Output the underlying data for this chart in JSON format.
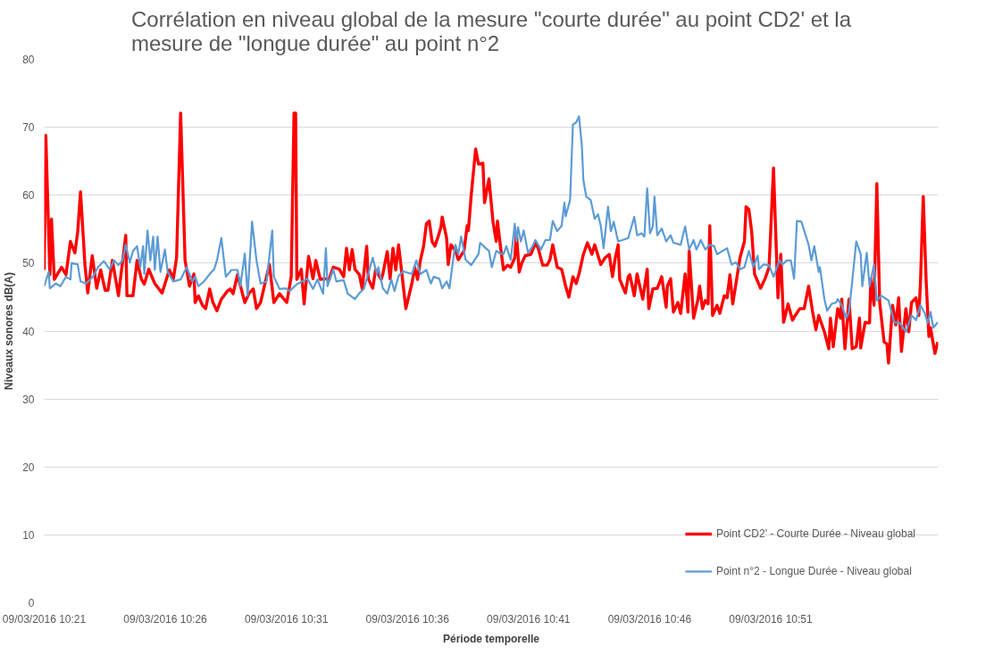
{
  "chart_data": {
    "type": "line",
    "title": "Corrélation en niveau global de la mesure \"courte durée\" au point CD2' et la mesure de \"longue durée\" au point n°2",
    "xlabel": "Période temporelle",
    "ylabel": "Niveaux sonores dB(A)",
    "xlim": [
      "2016-03-09T10:21:00",
      "2016-03-09T10:57:55"
    ],
    "ylim": [
      0,
      80
    ],
    "xticks": [
      {
        "value": "2016-03-09T10:21",
        "label": "09/03/2016 10:21"
      },
      {
        "value": "2016-03-09T10:26",
        "label": "09/03/2016 10:26"
      },
      {
        "value": "2016-03-09T10:31",
        "label": "09/03/2016 10:31"
      },
      {
        "value": "2016-03-09T10:36",
        "label": "09/03/2016 10:36"
      },
      {
        "value": "2016-03-09T10:41",
        "label": "09/03/2016 10:41"
      },
      {
        "value": "2016-03-09T10:46",
        "label": "09/03/2016 10:46"
      },
      {
        "value": "2016-03-09T10:51",
        "label": "09/03/2016 10:51"
      }
    ],
    "yticks": [
      0,
      10,
      20,
      30,
      40,
      50,
      60,
      70,
      80
    ],
    "grid": "y",
    "legend": "bottom right",
    "marker": "none",
    "line_style": "solid",
    "series": [
      {
        "name": "Point CD2' - Courte Durée - Niveau global",
        "color": "#ff0000",
        "x": [
          "2016-03-09T10:21:00",
          "2016-03-09T10:21:04",
          "2016-03-09T10:21:14",
          "2016-03-09T10:21:18",
          "2016-03-09T10:21:25",
          "2016-03-09T10:21:43",
          "2016-03-09T10:21:54",
          "2016-03-09T10:22:05",
          "2016-03-09T10:22:16",
          "2016-03-09T10:22:23",
          "2016-03-09T10:22:30",
          "2016-03-09T10:22:41",
          "2016-03-09T10:22:48",
          "2016-03-09T10:22:59",
          "2016-03-09T10:23:10",
          "2016-03-09T10:23:20",
          "2016-03-09T10:23:31",
          "2016-03-09T10:23:38",
          "2016-03-09T10:23:49",
          "2016-03-09T10:24:04",
          "2016-03-09T10:24:22",
          "2016-03-09T10:24:25",
          "2016-03-09T10:24:40",
          "2016-03-09T10:24:50",
          "2016-03-09T10:25:01",
          "2016-03-09T10:25:08",
          "2016-03-09T10:25:19",
          "2016-03-09T10:25:34",
          "2016-03-09T10:25:52",
          "2016-03-09T10:26:10",
          "2016-03-09T10:26:20",
          "2016-03-09T10:26:28",
          "2016-03-09T10:26:38",
          "2016-03-09T10:26:49",
          "2016-03-09T10:27:00",
          "2016-03-09T10:27:11",
          "2016-03-09T10:27:14",
          "2016-03-09T10:27:22",
          "2016-03-09T10:27:32",
          "2016-03-09T10:27:40",
          "2016-03-09T10:27:50",
          "2016-03-09T10:27:58",
          "2016-03-09T10:28:08",
          "2016-03-09T10:28:19",
          "2016-03-09T10:28:34",
          "2016-03-09T10:28:41",
          "2016-03-09T10:28:48",
          "2016-03-09T10:28:59",
          "2016-03-09T10:29:17",
          "2016-03-09T10:29:28",
          "2016-03-09T10:29:38",
          "2016-03-09T10:29:46",
          "2016-03-09T10:29:56",
          "2016-03-09T10:30:07",
          "2016-03-09T10:30:18",
          "2016-03-09T10:30:29",
          "2016-03-09T10:30:43",
          "2016-03-09T10:30:54",
          "2016-03-09T10:31:01",
          "2016-03-09T10:31:12",
          "2016-03-09T10:31:19",
          "2016-03-09T10:31:23",
          "2016-03-09T10:31:26",
          "2016-03-09T10:31:37",
          "2016-03-09T10:31:44",
          "2016-03-09T10:31:55",
          "2016-03-09T10:32:06",
          "2016-03-09T10:32:13",
          "2016-03-09T10:32:24",
          "2016-03-09T10:32:35",
          "2016-03-09T10:32:46",
          "2016-03-09T10:32:56",
          "2016-03-09T10:33:11",
          "2016-03-09T10:33:22",
          "2016-03-09T10:33:29",
          "2016-03-09T10:33:36",
          "2016-03-09T10:33:43",
          "2016-03-09T10:33:50",
          "2016-03-09T10:34:01",
          "2016-03-09T10:34:08",
          "2016-03-09T10:34:19",
          "2016-03-09T10:34:23",
          "2016-03-09T10:34:34",
          "2016-03-09T10:34:41",
          "2016-03-09T10:34:55",
          "2016-03-09T10:34:59",
          "2016-03-09T10:35:10",
          "2016-03-09T10:35:17",
          "2016-03-09T10:35:24",
          "2016-03-09T10:35:31",
          "2016-03-09T10:35:38",
          "2016-03-09T10:35:49",
          "2016-03-09T10:35:56",
          "2016-03-09T10:36:11",
          "2016-03-09T10:36:18",
          "2016-03-09T10:36:25",
          "2016-03-09T10:36:32",
          "2016-03-09T10:36:40",
          "2016-03-09T10:36:47",
          "2016-03-09T10:36:54",
          "2016-03-09T10:37:01",
          "2016-03-09T10:37:08",
          "2016-03-09T10:37:16",
          "2016-03-09T10:37:23",
          "2016-03-09T10:37:26",
          "2016-03-09T10:37:37",
          "2016-03-09T10:37:41",
          "2016-03-09T10:37:48",
          "2016-03-09T10:37:59",
          "2016-03-09T10:38:06",
          "2016-03-09T10:38:20",
          "2016-03-09T10:38:28",
          "2016-03-09T10:38:31",
          "2016-03-09T10:38:38",
          "2016-03-09T10:38:49",
          "2016-03-09T10:38:56",
          "2016-03-09T10:39:07",
          "2016-03-09T10:39:11",
          "2016-03-09T10:39:22",
          "2016-03-09T10:39:32",
          "2016-03-09T10:39:40",
          "2016-03-09T10:39:43",
          "2016-03-09T10:39:50",
          "2016-03-09T10:39:58",
          "2016-03-09T10:40:08",
          "2016-03-09T10:40:16",
          "2016-03-09T10:40:26",
          "2016-03-09T10:40:30",
          "2016-03-09T10:40:37",
          "2016-03-09T10:40:44",
          "2016-03-09T10:40:52",
          "2016-03-09T10:41:06",
          "2016-03-09T10:41:17",
          "2016-03-09T10:41:24",
          "2016-03-09T10:41:35",
          "2016-03-09T10:41:46",
          "2016-03-09T10:41:53",
          "2016-03-09T10:42:00",
          "2016-03-09T10:42:11",
          "2016-03-09T10:42:22",
          "2016-03-09T10:42:32",
          "2016-03-09T10:42:40",
          "2016-03-09T10:42:50",
          "2016-03-09T10:42:58",
          "2016-03-09T10:43:05",
          "2016-03-09T10:43:16",
          "2016-03-09T10:43:26",
          "2016-03-09T10:43:37",
          "2016-03-09T10:43:44",
          "2016-03-09T10:43:59",
          "2016-03-09T10:44:10",
          "2016-03-09T10:44:20",
          "2016-03-09T10:44:28",
          "2016-03-09T10:44:35",
          "2016-03-09T10:44:42",
          "2016-03-09T10:44:46",
          "2016-03-09T10:45:00",
          "2016-03-09T10:45:07",
          "2016-03-09T10:45:11",
          "2016-03-09T10:45:22",
          "2016-03-09T10:45:29",
          "2016-03-09T10:45:43",
          "2016-03-09T10:45:54",
          "2016-03-09T10:45:58",
          "2016-03-09T10:46:08",
          "2016-03-09T10:46:19",
          "2016-03-09T10:46:30",
          "2016-03-09T10:46:41",
          "2016-03-09T10:46:44",
          "2016-03-09T10:46:52",
          "2016-03-09T10:46:59",
          "2016-03-09T10:47:10",
          "2016-03-09T10:47:17",
          "2016-03-09T10:47:28",
          "2016-03-09T10:47:35",
          "2016-03-09T10:47:38",
          "2016-03-09T10:47:49",
          "2016-03-09T10:48:00",
          "2016-03-09T10:48:04",
          "2016-03-09T10:48:11",
          "2016-03-09T10:48:18",
          "2016-03-09T10:48:25",
          "2016-03-09T10:48:29",
          "2016-03-09T10:48:36",
          "2016-03-09T10:48:47",
          "2016-03-09T10:48:54",
          "2016-03-09T10:49:05",
          "2016-03-09T10:49:12",
          "2016-03-09T10:49:19",
          "2016-03-09T10:49:26",
          "2016-03-09T10:49:34",
          "2016-03-09T10:49:44",
          "2016-03-09T10:49:55",
          "2016-03-09T10:49:59",
          "2016-03-09T10:50:06",
          "2016-03-09T10:50:13",
          "2016-03-09T10:50:20",
          "2016-03-09T10:50:35",
          "2016-03-09T10:50:46",
          "2016-03-09T10:50:56",
          "2016-03-09T10:51:07",
          "2016-03-09T10:51:18",
          "2016-03-09T10:51:25",
          "2016-03-09T10:51:32",
          "2016-03-09T10:51:43",
          "2016-03-09T10:51:54",
          "2016-03-09T10:52:01",
          "2016-03-09T10:52:12",
          "2016-03-09T10:52:23",
          "2016-03-09T10:52:34",
          "2016-03-09T10:52:44",
          "2016-03-09T10:52:52",
          "2016-03-09T10:52:59",
          "2016-03-09T10:53:13",
          "2016-03-09T10:53:24",
          "2016-03-09T10:53:28",
          "2016-03-09T10:53:35",
          "2016-03-09T10:53:46",
          "2016-03-09T10:53:53",
          "2016-03-09T10:53:56",
          "2016-03-09T10:54:04",
          "2016-03-09T10:54:14",
          "2016-03-09T10:54:22",
          "2016-03-09T10:54:32",
          "2016-03-09T10:54:40",
          "2016-03-09T10:54:43",
          "2016-03-09T10:54:54",
          "2016-03-09T10:55:05",
          "2016-03-09T10:55:08",
          "2016-03-09T10:55:16",
          "2016-03-09T10:55:23",
          "2016-03-09T10:55:30",
          "2016-03-09T10:55:41",
          "2016-03-09T10:55:48",
          "2016-03-09T10:55:52",
          "2016-03-09T10:56:02",
          "2016-03-09T10:56:10",
          "2016-03-09T10:56:17",
          "2016-03-09T10:56:24",
          "2016-03-09T10:56:35",
          "2016-03-09T10:56:42",
          "2016-03-09T10:56:49",
          "2016-03-09T10:57:00",
          "2016-03-09T10:57:07",
          "2016-03-09T10:57:11",
          "2016-03-09T10:57:18",
          "2016-03-09T10:57:25",
          "2016-03-09T10:57:32",
          "2016-03-09T10:57:36",
          "2016-03-09T10:57:47",
          "2016-03-09T10:57:54"
        ],
        "values": [
          49,
          68.8,
          48.3,
          56.5,
          47.6,
          49.4,
          48.3,
          53.2,
          51.5,
          54.6,
          60.5,
          49.7,
          45.6,
          51.1,
          46.3,
          49,
          46,
          46,
          50.4,
          45.2,
          54.1,
          45.2,
          45.2,
          50.4,
          47.6,
          46.9,
          49.1,
          47,
          45.6,
          49,
          47.7,
          50.8,
          72.1,
          50.4,
          46.6,
          48.4,
          44.2,
          45.2,
          43.8,
          43.3,
          46.2,
          44.2,
          43,
          44.7,
          45.9,
          46.2,
          45.5,
          48.3,
          44.2,
          45.6,
          46.2,
          43.3,
          44.2,
          47,
          49.8,
          44.2,
          45.5,
          44.7,
          44.2,
          48,
          72.1,
          72.1,
          47.6,
          49.1,
          44,
          51,
          47.7,
          50.4,
          47.6,
          47.7,
          47.6,
          49.4,
          49.1,
          48,
          52.2,
          49,
          52,
          49.1,
          48.3,
          46.2,
          52.5,
          47.7,
          46.3,
          49,
          47.6,
          48.4,
          51.7,
          47.7,
          52.2,
          49,
          52.7,
          47,
          43.3,
          47,
          49.4,
          47.6,
          50.4,
          52.5,
          55.8,
          56.2,
          53.2,
          52.5,
          53.9,
          55.3,
          56.8,
          53.7,
          49.8,
          52.7,
          51.8,
          50.5,
          51.8,
          55.5,
          54.8,
          60,
          66.8,
          64.6,
          64.7,
          58.9,
          62.4,
          56.1,
          53.2,
          56.2,
          52.7,
          49,
          49.7,
          49.4,
          50.8,
          54.4,
          48.7,
          50.1,
          51.1,
          51.3,
          53,
          52.2,
          49.7,
          49.7,
          50.5,
          52.7,
          49.4,
          49.1,
          46.6,
          45,
          48,
          47,
          48.4,
          51.3,
          53,
          51.3,
          52.7,
          49.8,
          50.8,
          51.3,
          48,
          50.8,
          52.7,
          47.6,
          45.6,
          48,
          48.3,
          45.2,
          48.4,
          44.7,
          49.1,
          43.3,
          46.2,
          46.3,
          48,
          43.5,
          46.6,
          47.7,
          42.8,
          44.2,
          42.6,
          48.4,
          42.8,
          51.8,
          41.9,
          44.7,
          46.6,
          43.3,
          44.5,
          44,
          55.5,
          42.3,
          43.8,
          42.6,
          45.2,
          44.9,
          48.3,
          44,
          47,
          50.8,
          53.2,
          58.3,
          57.9,
          54.6,
          48.4,
          46.3,
          47.7,
          49.4,
          64,
          44.9,
          51.3,
          41.3,
          44,
          41.6,
          42.3,
          43.3,
          43.3,
          46.6,
          42.8,
          40.2,
          42.3,
          39.9,
          37.4,
          41.9,
          37.7,
          43.3,
          41.9,
          44.7,
          37.4,
          44.7,
          37.4,
          37.7,
          41.9,
          37.5,
          41.3,
          41.2,
          47.7,
          43.8,
          61.7,
          44.2,
          38.4,
          38.1,
          35.3,
          43.8,
          40.9,
          44.9,
          37,
          43.3,
          39.9,
          44.2,
          44.9,
          42.3,
          47,
          59.8,
          47.6,
          39.2,
          40.5,
          36.7,
          38.4
        ]
      },
      {
        "name": "Point n°2 - Longue Durée - Niveau global",
        "color": "#5b9bd5",
        "x": [
          "2016-03-09T10:21:00",
          "2016-03-09T10:21:11",
          "2016-03-09T10:21:14",
          "2016-03-09T10:21:29",
          "2016-03-09T10:21:40",
          "2016-03-09T10:21:54",
          "2016-03-09T10:22:05",
          "2016-03-09T10:22:08",
          "2016-03-09T10:22:23",
          "2016-03-09T10:22:30",
          "2016-03-09T10:22:44",
          "2016-03-09T10:23:02",
          "2016-03-09T10:23:13",
          "2016-03-09T10:23:28",
          "2016-03-09T10:23:42",
          "2016-03-09T10:23:53",
          "2016-03-09T10:24:04",
          "2016-03-09T10:24:14",
          "2016-03-09T10:24:22",
          "2016-03-09T10:24:32",
          "2016-03-09T10:24:40",
          "2016-03-09T10:24:50",
          "2016-03-09T10:24:58",
          "2016-03-09T10:25:05",
          "2016-03-09T10:25:08",
          "2016-03-09T10:25:16",
          "2016-03-09T10:25:23",
          "2016-03-09T10:25:30",
          "2016-03-09T10:25:34",
          "2016-03-09T10:25:41",
          "2016-03-09T10:25:48",
          "2016-03-09T10:25:59",
          "2016-03-09T10:26:06",
          "2016-03-09T10:26:20",
          "2016-03-09T10:26:38",
          "2016-03-09T10:26:53",
          "2016-03-09T10:27:07",
          "2016-03-09T10:27:14",
          "2016-03-09T10:27:22",
          "2016-03-09T10:27:36",
          "2016-03-09T10:27:50",
          "2016-03-09T10:28:01",
          "2016-03-09T10:28:08",
          "2016-03-09T10:28:19",
          "2016-03-09T10:28:30",
          "2016-03-09T10:28:44",
          "2016-03-09T10:28:59",
          "2016-03-09T10:29:06",
          "2016-03-09T10:29:17",
          "2016-03-09T10:29:24",
          "2016-03-09T10:29:35",
          "2016-03-09T10:29:46",
          "2016-03-09T10:29:56",
          "2016-03-09T10:30:11",
          "2016-03-09T10:30:25",
          "2016-03-09T10:30:29",
          "2016-03-09T10:30:43",
          "2016-03-09T10:30:58",
          "2016-03-09T10:31:08",
          "2016-03-09T10:31:26",
          "2016-03-09T10:31:52",
          "2016-03-09T10:32:06",
          "2016-03-09T10:32:17",
          "2016-03-09T10:32:31",
          "2016-03-09T10:32:38",
          "2016-03-09T10:32:42",
          "2016-03-09T10:32:56",
          "2016-03-09T10:33:04",
          "2016-03-09T10:33:22",
          "2016-03-09T10:33:32",
          "2016-03-09T10:33:50",
          "2016-03-09T10:34:01",
          "2016-03-09T10:34:12",
          "2016-03-09T10:34:23",
          "2016-03-09T10:34:34",
          "2016-03-09T10:34:44",
          "2016-03-09T10:34:48",
          "2016-03-09T10:34:59",
          "2016-03-09T10:35:10",
          "2016-03-09T10:35:20",
          "2016-03-09T10:35:28",
          "2016-03-09T10:35:38",
          "2016-03-09T10:35:49",
          "2016-03-09T10:36:11",
          "2016-03-09T10:36:22",
          "2016-03-09T10:36:32",
          "2016-03-09T10:36:47",
          "2016-03-09T10:36:58",
          "2016-03-09T10:37:05",
          "2016-03-09T10:37:19",
          "2016-03-09T10:37:26",
          "2016-03-09T10:37:37",
          "2016-03-09T10:37:44",
          "2016-03-09T10:37:55",
          "2016-03-09T10:37:59",
          "2016-03-09T10:38:06",
          "2016-03-09T10:38:13",
          "2016-03-09T10:38:24",
          "2016-03-09T10:38:38",
          "2016-03-09T10:38:56",
          "2016-03-09T10:39:00",
          "2016-03-09T10:39:14",
          "2016-03-09T10:39:22",
          "2016-03-09T10:39:29",
          "2016-03-09T10:39:40",
          "2016-03-09T10:39:47",
          "2016-03-09T10:39:58",
          "2016-03-09T10:40:05",
          "2016-03-09T10:40:16",
          "2016-03-09T10:40:26",
          "2016-03-09T10:40:30",
          "2016-03-09T10:40:34",
          "2016-03-09T10:40:41",
          "2016-03-09T10:40:48",
          "2016-03-09T10:40:59",
          "2016-03-09T10:41:10",
          "2016-03-09T10:41:17",
          "2016-03-09T10:41:31",
          "2016-03-09T10:41:42",
          "2016-03-09T10:41:53",
          "2016-03-09T10:42:00",
          "2016-03-09T10:42:11",
          "2016-03-09T10:42:22",
          "2016-03-09T10:42:29",
          "2016-03-09T10:42:32",
          "2016-03-09T10:42:43",
          "2016-03-09T10:42:50",
          "2016-03-09T10:42:58",
          "2016-03-09T10:43:05",
          "2016-03-09T10:43:12",
          "2016-03-09T10:43:16",
          "2016-03-09T10:43:23",
          "2016-03-09T10:43:34",
          "2016-03-09T10:43:44",
          "2016-03-09T10:43:52",
          "2016-03-09T10:43:59",
          "2016-03-09T10:44:06",
          "2016-03-09T10:44:17",
          "2016-03-09T10:44:24",
          "2016-03-09T10:44:31",
          "2016-03-09T10:44:42",
          "2016-03-09T10:44:53",
          "2016-03-09T10:45:07",
          "2016-03-09T10:45:22",
          "2016-03-09T10:45:29",
          "2016-03-09T10:45:40",
          "2016-03-09T10:45:47",
          "2016-03-09T10:45:54",
          "2016-03-09T10:46:01",
          "2016-03-09T10:46:08",
          "2016-03-09T10:46:12",
          "2016-03-09T10:46:19",
          "2016-03-09T10:46:30",
          "2016-03-09T10:46:41",
          "2016-03-09T10:46:52",
          "2016-03-09T10:46:59",
          "2016-03-09T10:47:17",
          "2016-03-09T10:47:28",
          "2016-03-09T10:47:38",
          "2016-03-09T10:47:49",
          "2016-03-09T10:47:56",
          "2016-03-09T10:48:07",
          "2016-03-09T10:48:18",
          "2016-03-09T10:48:29",
          "2016-03-09T10:48:40",
          "2016-03-09T10:48:47",
          "2016-03-09T10:49:01",
          "2016-03-09T10:49:12",
          "2016-03-09T10:49:23",
          "2016-03-09T10:49:34",
          "2016-03-09T10:49:44",
          "2016-03-09T10:49:55",
          "2016-03-09T10:50:06",
          "2016-03-09T10:50:17",
          "2016-03-09T10:50:28",
          "2016-03-09T10:50:31",
          "2016-03-09T10:50:42",
          "2016-03-09T10:50:56",
          "2016-03-09T10:51:07",
          "2016-03-09T10:51:22",
          "2016-03-09T10:51:29",
          "2016-03-09T10:51:40",
          "2016-03-09T10:51:50",
          "2016-03-09T10:51:58",
          "2016-03-09T10:52:05",
          "2016-03-09T10:52:16",
          "2016-03-09T10:52:34",
          "2016-03-09T10:52:41",
          "2016-03-09T10:52:48",
          "2016-03-09T10:52:59",
          "2016-03-09T10:53:02",
          "2016-03-09T10:53:13",
          "2016-03-09T10:53:20",
          "2016-03-09T10:53:31",
          "2016-03-09T10:53:42",
          "2016-03-09T10:53:46",
          "2016-03-09T10:53:56",
          "2016-03-09T10:54:07",
          "2016-03-09T10:54:14",
          "2016-03-09T10:54:22",
          "2016-03-09T10:54:32",
          "2016-03-09T10:54:43",
          "2016-03-09T10:54:47",
          "2016-03-09T10:54:58",
          "2016-03-09T10:55:05",
          "2016-03-09T10:55:16",
          "2016-03-09T10:55:23",
          "2016-03-09T10:55:34",
          "2016-03-09T10:55:52",
          "2016-03-09T10:56:06",
          "2016-03-09T10:56:20",
          "2016-03-09T10:56:35",
          "2016-03-09T10:56:49",
          "2016-03-09T10:57:00",
          "2016-03-09T10:57:11",
          "2016-03-09T10:57:22",
          "2016-03-09T10:57:29",
          "2016-03-09T10:57:36",
          "2016-03-09T10:57:43",
          "2016-03-09T10:57:54"
        ],
        "values": [
          46.6,
          48.7,
          46.3,
          47,
          46.6,
          48,
          47.6,
          50,
          49.8,
          47.3,
          47,
          48.1,
          49.4,
          50.3,
          49.1,
          50.4,
          49.7,
          50.4,
          52.7,
          50.1,
          51.8,
          52.5,
          49.4,
          52.5,
          48.4,
          54.8,
          50.4,
          53.9,
          49,
          53.9,
          48.7,
          52,
          48.7,
          47.3,
          47.6,
          49.4,
          47.3,
          48,
          46.6,
          47.3,
          48.4,
          49.1,
          50.4,
          53.7,
          48,
          49,
          49,
          46.6,
          51.4,
          45.2,
          56.1,
          50.4,
          47,
          47.3,
          54.8,
          48,
          46.2,
          46.3,
          45.9,
          46.9,
          47.7,
          46.2,
          47.6,
          45.5,
          52.2,
          46.6,
          49.1,
          47.3,
          47.5,
          45.5,
          44.7,
          45.6,
          46.2,
          48.4,
          50.8,
          48.4,
          49.4,
          46.3,
          45.5,
          47.6,
          45.9,
          48.1,
          48.8,
          48.4,
          50.4,
          48.4,
          49,
          47,
          48,
          47.7,
          46.3,
          47.3,
          46.3,
          51.3,
          52.7,
          51.3,
          53.9,
          50.5,
          49.7,
          51.3,
          53,
          52.2,
          51.8,
          49.4,
          51.8,
          51.5,
          51.3,
          52.5,
          50.5,
          55.8,
          53.2,
          55.3,
          53.2,
          54.8,
          51.5,
          52.5,
          53.4,
          52,
          53.4,
          53.4,
          56.2,
          54.7,
          55.5,
          58.9,
          56.9,
          59.3,
          70.4,
          70.7,
          71.6,
          67.4,
          62.2,
          59.8,
          59.3,
          56.5,
          57.2,
          55.5,
          52.2,
          58.3,
          54.7,
          56.1,
          53.2,
          53.4,
          53.7,
          56.8,
          54.1,
          54.4,
          53.9,
          61,
          54.4,
          55.4,
          59.8,
          54.1,
          55.1,
          53.2,
          54.1,
          53,
          52.7,
          55.4,
          52,
          53.4,
          52,
          53.4,
          52,
          52.7,
          52.5,
          51.3,
          51.8,
          52.2,
          49.8,
          50.1,
          49.1,
          49.4,
          51.8,
          49.4,
          51.1,
          49.1,
          49.8,
          49.7,
          48,
          50.4,
          49.8,
          50.4,
          50.4,
          47.7,
          56.2,
          56.1,
          52.7,
          50.4,
          52.5,
          48.7,
          49.4,
          44.7,
          43,
          44,
          44.2,
          44.7,
          43.8,
          41.9,
          42.8,
          47.3,
          53.2,
          51.3,
          46.6,
          51.5,
          46.6,
          49.8,
          44.5,
          45.2,
          44.5,
          41.3,
          41.2,
          39.9,
          42.3,
          41.6,
          43.8,
          42.6,
          41.2,
          42.8,
          40.5,
          41.3
        ]
      }
    ]
  }
}
